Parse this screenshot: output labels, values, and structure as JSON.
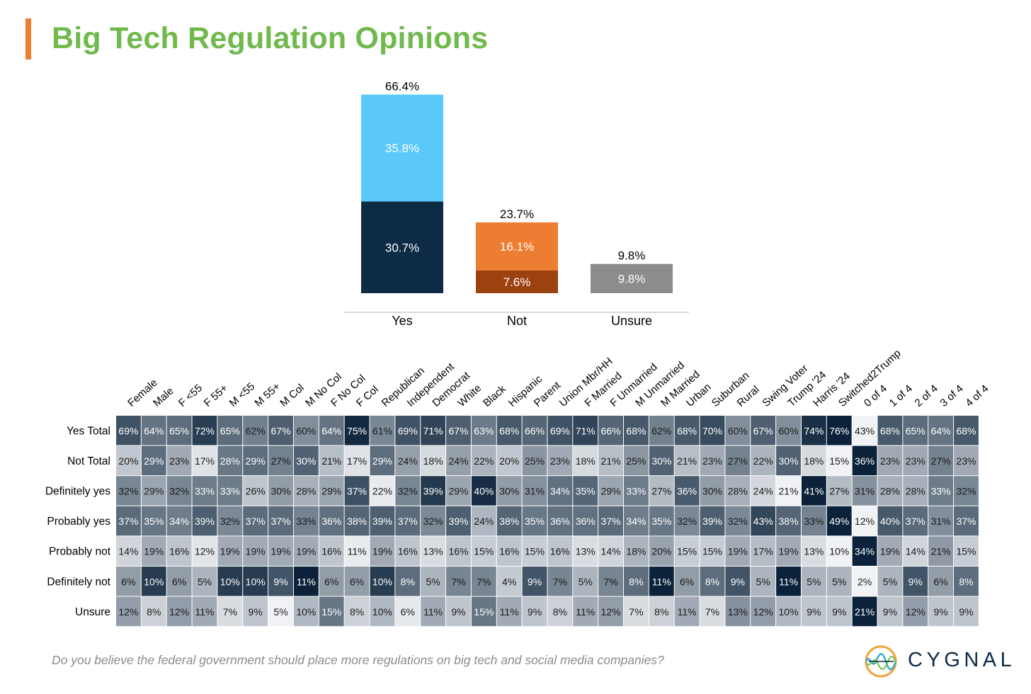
{
  "title": "Big Tech Regulation Opinions",
  "question": "Do you believe the federal government should place more regulations on big tech and social media companies?",
  "logo": {
    "text": "CYGNAL"
  },
  "colors": {
    "title": "#70b94d",
    "accent": "#ed7d31",
    "yes_dark": "#0d2b45",
    "yes_light": "#5bc8fa",
    "not_light": "#ed7d31",
    "not_dark": "#9c4110",
    "unsure": "#8c8c8c"
  },
  "chart_data": [
    {
      "type": "bar",
      "stacked": true,
      "categories": [
        "Yes",
        "Not",
        "Unsure"
      ],
      "totals": [
        "66.4%",
        "23.7%",
        "9.8%"
      ],
      "segments": [
        {
          "category": "Yes",
          "bottom": 30.7,
          "top": 35.8,
          "bottom_label": "30.7%",
          "top_label": "35.8%"
        },
        {
          "category": "Not",
          "bottom": 7.6,
          "top": 16.1,
          "bottom_label": "7.6%",
          "top_label": "16.1%"
        },
        {
          "category": "Unsure",
          "bottom": 9.8,
          "top": 0,
          "bottom_label": "9.8%",
          "top_label": ""
        }
      ]
    },
    {
      "type": "heatmap",
      "columns": [
        "Female",
        "Male",
        "F <55",
        "F 55+",
        "M <55",
        "M 55+",
        "M Col",
        "M No Col",
        "F No Col",
        "F Col",
        "Republican",
        "Independent",
        "Democrat",
        "White",
        "Black",
        "Hispanic",
        "Parent",
        "Union Mbr/HH",
        "F Married",
        "F Unmarried",
        "M Unmarried",
        "M Married",
        "Urban",
        "Suburban",
        "Rural",
        "Swing Voter",
        "Trump '24",
        "Harris '24",
        "Switched2Trump",
        "0 of 4",
        "1 of 4",
        "2 of 4",
        "3 of 4",
        "4 of 4"
      ],
      "rows": [
        {
          "label": "Yes Total",
          "values": [
            69,
            64,
            65,
            72,
            65,
            62,
            67,
            60,
            64,
            75,
            61,
            69,
            71,
            67,
            63,
            68,
            66,
            69,
            71,
            66,
            68,
            62,
            68,
            70,
            60,
            67,
            60,
            74,
            76,
            43,
            68,
            65,
            64,
            68
          ]
        },
        {
          "label": "Not Total",
          "values": [
            20,
            29,
            23,
            17,
            28,
            29,
            27,
            30,
            21,
            17,
            29,
            24,
            18,
            24,
            22,
            20,
            25,
            23,
            18,
            21,
            25,
            30,
            21,
            23,
            27,
            22,
            30,
            18,
            15,
            36,
            23,
            23,
            27,
            23
          ]
        },
        {
          "label": "Definitely yes",
          "values": [
            32,
            29,
            32,
            33,
            33,
            26,
            30,
            28,
            29,
            37,
            22,
            32,
            39,
            29,
            40,
            30,
            31,
            34,
            35,
            29,
            33,
            27,
            36,
            30,
            28,
            24,
            21,
            41,
            27,
            31,
            28,
            28,
            33,
            32
          ]
        },
        {
          "label": "Probably yes",
          "values": [
            37,
            35,
            34,
            39,
            32,
            37,
            37,
            33,
            36,
            38,
            39,
            37,
            32,
            39,
            24,
            38,
            35,
            36,
            36,
            37,
            34,
            35,
            32,
            39,
            32,
            43,
            38,
            33,
            49,
            12,
            40,
            37,
            31,
            37
          ]
        },
        {
          "label": "Probably not",
          "values": [
            14,
            19,
            16,
            12,
            19,
            19,
            19,
            19,
            16,
            11,
            19,
            16,
            13,
            16,
            15,
            16,
            15,
            16,
            13,
            14,
            18,
            20,
            15,
            15,
            19,
            17,
            19,
            13,
            10,
            34,
            19,
            14,
            21,
            15
          ]
        },
        {
          "label": "Definitely not",
          "values": [
            6,
            10,
            6,
            5,
            10,
            10,
            9,
            11,
            6,
            6,
            10,
            8,
            5,
            7,
            7,
            4,
            9,
            7,
            5,
            7,
            8,
            11,
            6,
            8,
            9,
            5,
            11,
            5,
            5,
            2,
            5,
            9,
            6,
            8
          ]
        },
        {
          "label": "Unsure",
          "values": [
            12,
            8,
            12,
            11,
            7,
            9,
            5,
            10,
            15,
            8,
            10,
            6,
            11,
            9,
            15,
            11,
            9,
            8,
            11,
            12,
            7,
            8,
            11,
            7,
            13,
            12,
            10,
            9,
            9,
            21,
            9,
            12,
            9,
            9
          ]
        }
      ]
    }
  ]
}
